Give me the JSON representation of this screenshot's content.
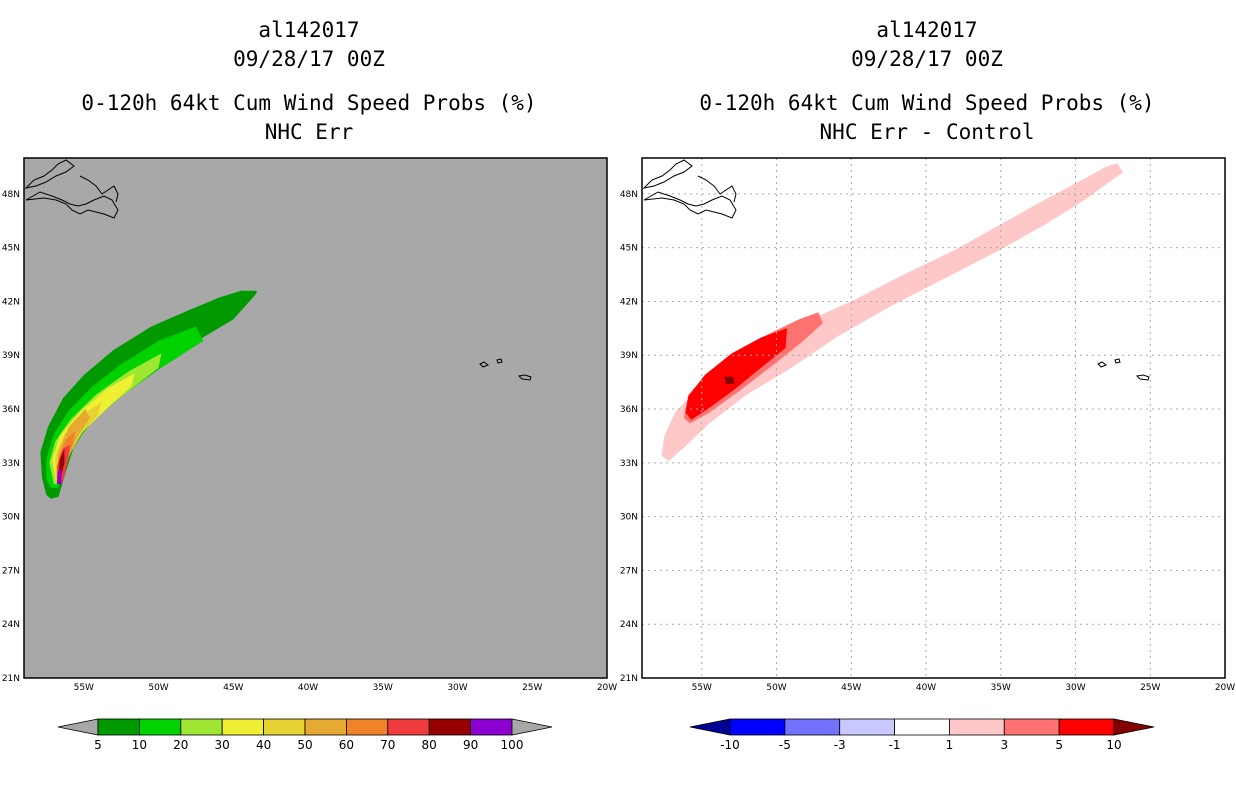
{
  "chart_data": [
    {
      "type": "heatmap",
      "title_lines": [
        "al142017",
        "09/28/17 00Z",
        "0-120h 64kt Cum Wind Speed Probs (%)",
        "NHC Err"
      ],
      "lon_ticks": [
        "55W",
        "50W",
        "45W",
        "40W",
        "35W",
        "30W",
        "25W",
        "20W"
      ],
      "lat_ticks": [
        "48N",
        "45N",
        "42N",
        "39N",
        "36N",
        "33N",
        "30N",
        "27N",
        "24N",
        "21N"
      ],
      "lon_range": [
        -59,
        -20
      ],
      "lat_range": [
        21,
        50
      ],
      "background_color": "#a8a8a8",
      "gridlines": false,
      "colorbar": {
        "levels": [
          "5",
          "10",
          "20",
          "30",
          "40",
          "50",
          "60",
          "70",
          "80",
          "90",
          "100"
        ],
        "colors": [
          "#a8a8a8",
          "#009a00",
          "#00d200",
          "#9ee632",
          "#f0f032",
          "#e6d232",
          "#e6aa32",
          "#f08228",
          "#f03c3c",
          "#960000",
          "#8c00d2",
          "#a8a8a8"
        ]
      },
      "contours": [
        {
          "level": 5,
          "color": "#009a00",
          "path": [
            [
              -57.5,
              31.2
            ],
            [
              -57.2,
              31.0
            ],
            [
              -56.7,
              31.1
            ],
            [
              -56.2,
              32.5
            ],
            [
              -55.7,
              33.8
            ],
            [
              -54.8,
              35.0
            ],
            [
              -53.5,
              36.1
            ],
            [
              -51.8,
              37.3
            ],
            [
              -49.5,
              38.7
            ],
            [
              -47.0,
              40.0
            ],
            [
              -45.0,
              41.0
            ],
            [
              -43.5,
              42.4
            ],
            [
              -43.4,
              42.6
            ],
            [
              -44.5,
              42.6
            ],
            [
              -46.0,
              42.2
            ],
            [
              -48.0,
              41.5
            ],
            [
              -50.5,
              40.6
            ],
            [
              -53.0,
              39.3
            ],
            [
              -55.0,
              37.9
            ],
            [
              -56.4,
              36.6
            ],
            [
              -57.4,
              35.0
            ],
            [
              -57.9,
              33.6
            ],
            [
              -57.8,
              32.2
            ]
          ]
        },
        {
          "level": 10,
          "color": "#00d200",
          "path": [
            [
              -57.2,
              31.6
            ],
            [
              -56.7,
              31.6
            ],
            [
              -56.3,
              32.8
            ],
            [
              -55.6,
              34.1
            ],
            [
              -54.3,
              35.4
            ],
            [
              -52.5,
              36.7
            ],
            [
              -50.0,
              38.2
            ],
            [
              -47.0,
              39.8
            ],
            [
              -47.5,
              40.6
            ],
            [
              -50.0,
              39.8
            ],
            [
              -52.5,
              38.5
            ],
            [
              -54.5,
              37.2
            ],
            [
              -56.0,
              35.9
            ],
            [
              -57.0,
              34.6
            ],
            [
              -57.5,
              33.2
            ],
            [
              -57.5,
              32.1
            ]
          ]
        },
        {
          "level": 20,
          "color": "#9ee632",
          "path": [
            [
              -57.0,
              31.8
            ],
            [
              -56.6,
              31.8
            ],
            [
              -56.2,
              33.2
            ],
            [
              -55.4,
              34.5
            ],
            [
              -54.0,
              35.7
            ],
            [
              -52.0,
              37.0
            ],
            [
              -50.0,
              38.3
            ],
            [
              -49.8,
              39.1
            ],
            [
              -52.0,
              38.1
            ],
            [
              -54.2,
              36.8
            ],
            [
              -55.9,
              35.4
            ],
            [
              -56.9,
              34.2
            ],
            [
              -57.3,
              33.0
            ]
          ]
        },
        {
          "level": 30,
          "color": "#f0f032",
          "path": [
            [
              -56.9,
              32.0
            ],
            [
              -56.5,
              32.0
            ],
            [
              -56.0,
              33.4
            ],
            [
              -55.1,
              34.7
            ],
            [
              -53.6,
              35.9
            ],
            [
              -51.8,
              37.3
            ],
            [
              -51.6,
              38.0
            ],
            [
              -53.5,
              37.1
            ],
            [
              -55.3,
              35.8
            ],
            [
              -56.6,
              34.5
            ],
            [
              -57.1,
              33.2
            ]
          ]
        },
        {
          "level": 40,
          "color": "#e6d232",
          "path": [
            [
              -56.9,
              32.1
            ],
            [
              -56.5,
              32.1
            ],
            [
              -56.0,
              33.5
            ],
            [
              -55.2,
              34.6
            ],
            [
              -54.1,
              35.6
            ],
            [
              -53.8,
              36.4
            ],
            [
              -55.0,
              35.7
            ],
            [
              -56.3,
              34.6
            ],
            [
              -56.9,
              33.4
            ]
          ]
        },
        {
          "level": 50,
          "color": "#e6aa32",
          "path": [
            [
              -56.8,
              32.1
            ],
            [
              -56.4,
              32.1
            ],
            [
              -56.0,
              33.3
            ],
            [
              -55.4,
              34.5
            ],
            [
              -54.6,
              35.5
            ],
            [
              -54.9,
              36.0
            ],
            [
              -56.0,
              35.0
            ],
            [
              -56.7,
              33.6
            ]
          ]
        },
        {
          "level": 60,
          "color": "#f08228",
          "path": [
            [
              -56.8,
              32.1
            ],
            [
              -56.4,
              32.1
            ],
            [
              -56.1,
              33.2
            ],
            [
              -55.7,
              34.2
            ],
            [
              -55.6,
              34.8
            ],
            [
              -56.2,
              34.3
            ],
            [
              -56.7,
              33.3
            ]
          ]
        },
        {
          "level": 70,
          "color": "#f03c3c",
          "path": [
            [
              -56.8,
              31.9
            ],
            [
              -56.4,
              31.9
            ],
            [
              -56.1,
              33.0
            ],
            [
              -55.9,
              34.0
            ],
            [
              -56.4,
              33.8
            ],
            [
              -56.8,
              32.8
            ]
          ]
        },
        {
          "level": 80,
          "color": "#960000",
          "path": [
            [
              -56.7,
              32.3
            ],
            [
              -56.5,
              32.3
            ],
            [
              -56.3,
              33.0
            ],
            [
              -56.3,
              33.8
            ],
            [
              -56.6,
              33.2
            ]
          ]
        },
        {
          "level": 90,
          "color": "#8c00d2",
          "path": [
            [
              -56.8,
              31.8
            ],
            [
              -56.5,
              31.8
            ],
            [
              -56.5,
              32.6
            ],
            [
              -56.7,
              32.6
            ]
          ]
        }
      ]
    },
    {
      "type": "heatmap",
      "title_lines": [
        "al142017",
        "09/28/17 00Z",
        "0-120h 64kt Cum Wind Speed Probs (%)",
        "NHC Err - Control"
      ],
      "lon_ticks": [
        "55W",
        "50W",
        "45W",
        "40W",
        "35W",
        "30W",
        "25W",
        "20W"
      ],
      "lat_ticks": [
        "48N",
        "45N",
        "42N",
        "39N",
        "36N",
        "33N",
        "30N",
        "27N",
        "24N",
        "21N"
      ],
      "lon_range": [
        -59,
        -20
      ],
      "lat_range": [
        21,
        50
      ],
      "background_color": "#ffffff",
      "gridlines": true,
      "colorbar": {
        "levels": [
          "-10",
          "-5",
          "-3",
          "-1",
          "1",
          "3",
          "5",
          "10"
        ],
        "colors": [
          "#000096",
          "#0000ff",
          "#7272ff",
          "#c8c8ff",
          "#ffffff",
          "#ffc8c8",
          "#ff7272",
          "#ff0000",
          "#820000"
        ]
      },
      "contours": [
        {
          "level": 1,
          "color": "#ffc8c8",
          "path": [
            [
              -57.7,
              33.4
            ],
            [
              -57.2,
              33.1
            ],
            [
              -56.0,
              34.0
            ],
            [
              -54.5,
              35.2
            ],
            [
              -52.0,
              36.8
            ],
            [
              -49.0,
              38.3
            ],
            [
              -46.0,
              40.0
            ],
            [
              -42.0,
              41.9
            ],
            [
              -38.0,
              43.6
            ],
            [
              -35.0,
              44.9
            ],
            [
              -32.0,
              46.3
            ],
            [
              -29.5,
              47.6
            ],
            [
              -27.5,
              48.8
            ],
            [
              -26.8,
              49.2
            ],
            [
              -27.2,
              49.7
            ],
            [
              -28.0,
              49.5
            ],
            [
              -29.5,
              48.8
            ],
            [
              -32.0,
              47.7
            ],
            [
              -35.0,
              46.3
            ],
            [
              -38.0,
              44.9
            ],
            [
              -41.5,
              43.5
            ],
            [
              -45.0,
              42.0
            ],
            [
              -48.0,
              40.9
            ],
            [
              -50.5,
              39.9
            ],
            [
              -53.0,
              38.6
            ],
            [
              -55.2,
              37.2
            ],
            [
              -56.8,
              35.8
            ],
            [
              -57.5,
              34.5
            ]
          ]
        },
        {
          "level": 3,
          "color": "#ff7272",
          "path": [
            [
              -56.2,
              35.5
            ],
            [
              -55.8,
              35.2
            ],
            [
              -54.5,
              35.8
            ],
            [
              -52.5,
              37.0
            ],
            [
              -50.0,
              38.6
            ],
            [
              -48.2,
              39.8
            ],
            [
              -46.9,
              40.8
            ],
            [
              -47.2,
              41.4
            ],
            [
              -48.5,
              41.0
            ],
            [
              -50.5,
              40.2
            ],
            [
              -52.5,
              39.3
            ],
            [
              -54.5,
              38.1
            ],
            [
              -55.9,
              36.8
            ]
          ]
        },
        {
          "level": 5,
          "color": "#ff0000",
          "path": [
            [
              -56.1,
              35.8
            ],
            [
              -55.7,
              35.4
            ],
            [
              -54.6,
              36.0
            ],
            [
              -52.8,
              37.1
            ],
            [
              -51.2,
              38.2
            ],
            [
              -49.4,
              39.4
            ],
            [
              -49.3,
              40.5
            ],
            [
              -51.0,
              40.0
            ],
            [
              -53.0,
              39.1
            ],
            [
              -54.8,
              37.9
            ],
            [
              -55.9,
              36.7
            ]
          ]
        },
        {
          "level": 10,
          "color": "#820000",
          "path": [
            [
              -53.4,
              37.4
            ],
            [
              -52.8,
              37.4
            ],
            [
              -52.9,
              37.8
            ],
            [
              -53.5,
              37.8
            ]
          ]
        }
      ]
    }
  ]
}
